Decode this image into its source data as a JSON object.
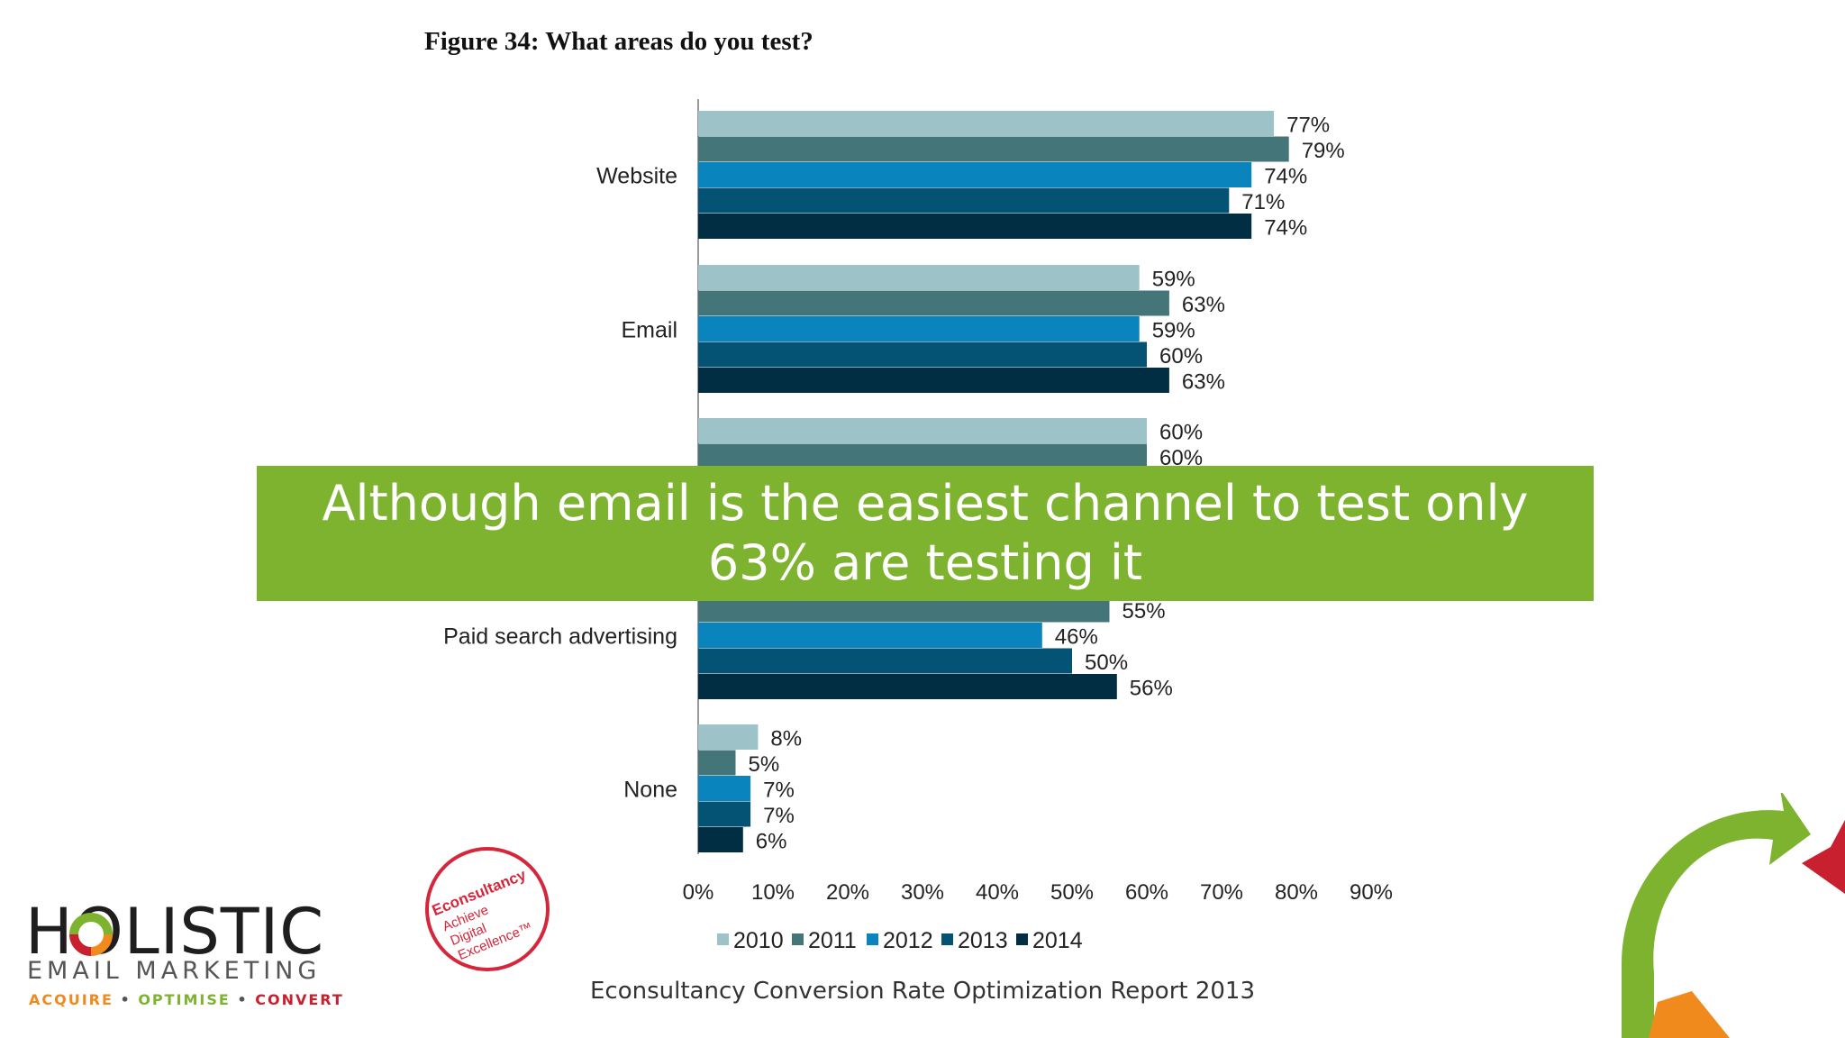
{
  "figure_title": "Figure 34: What areas do you test?",
  "banner_text": "Although email is the easiest channel to test only 63% are testing it",
  "source_text": "Econsultancy Conversion Rate Optimization Report 2013",
  "logo": {
    "main": "HOLISTIC",
    "sub": "EMAIL MARKETING",
    "tag_words": [
      "ACQUIRE",
      "OPTIMISE",
      "CONVERT"
    ],
    "tag_separator": "•"
  },
  "seal_text": [
    "Econsultancy",
    "Achieve",
    "Digital",
    "Excellence™"
  ],
  "colors": {
    "banner": "#7db32e",
    "series": [
      "#9dc3c9",
      "#437579",
      "#0a84bd",
      "#045274",
      "#022e44"
    ],
    "logo_green": "#7db32e",
    "logo_red": "#c8202f",
    "logo_orange": "#f08a1c",
    "seal_red": "#d6263b"
  },
  "chart_data": {
    "type": "bar",
    "orientation": "horizontal",
    "categories": [
      "Website",
      "Email",
      "",
      "Paid search advertising",
      "None"
    ],
    "series": [
      {
        "name": "2010",
        "values": [
          77,
          59,
          60,
          null,
          8
        ]
      },
      {
        "name": "2011",
        "values": [
          79,
          63,
          60,
          55,
          5
        ]
      },
      {
        "name": "2012",
        "values": [
          74,
          59,
          null,
          46,
          7
        ]
      },
      {
        "name": "2013",
        "values": [
          71,
          60,
          null,
          50,
          7
        ]
      },
      {
        "name": "2014",
        "values": [
          74,
          63,
          null,
          56,
          6
        ]
      }
    ],
    "value_suffix": "%",
    "xlim": [
      0,
      90
    ],
    "x_ticks": [
      "0%",
      "10%",
      "20%",
      "30%",
      "40%",
      "50%",
      "60%",
      "70%",
      "80%",
      "90%"
    ],
    "grid": false,
    "legend_position": "bottom"
  }
}
